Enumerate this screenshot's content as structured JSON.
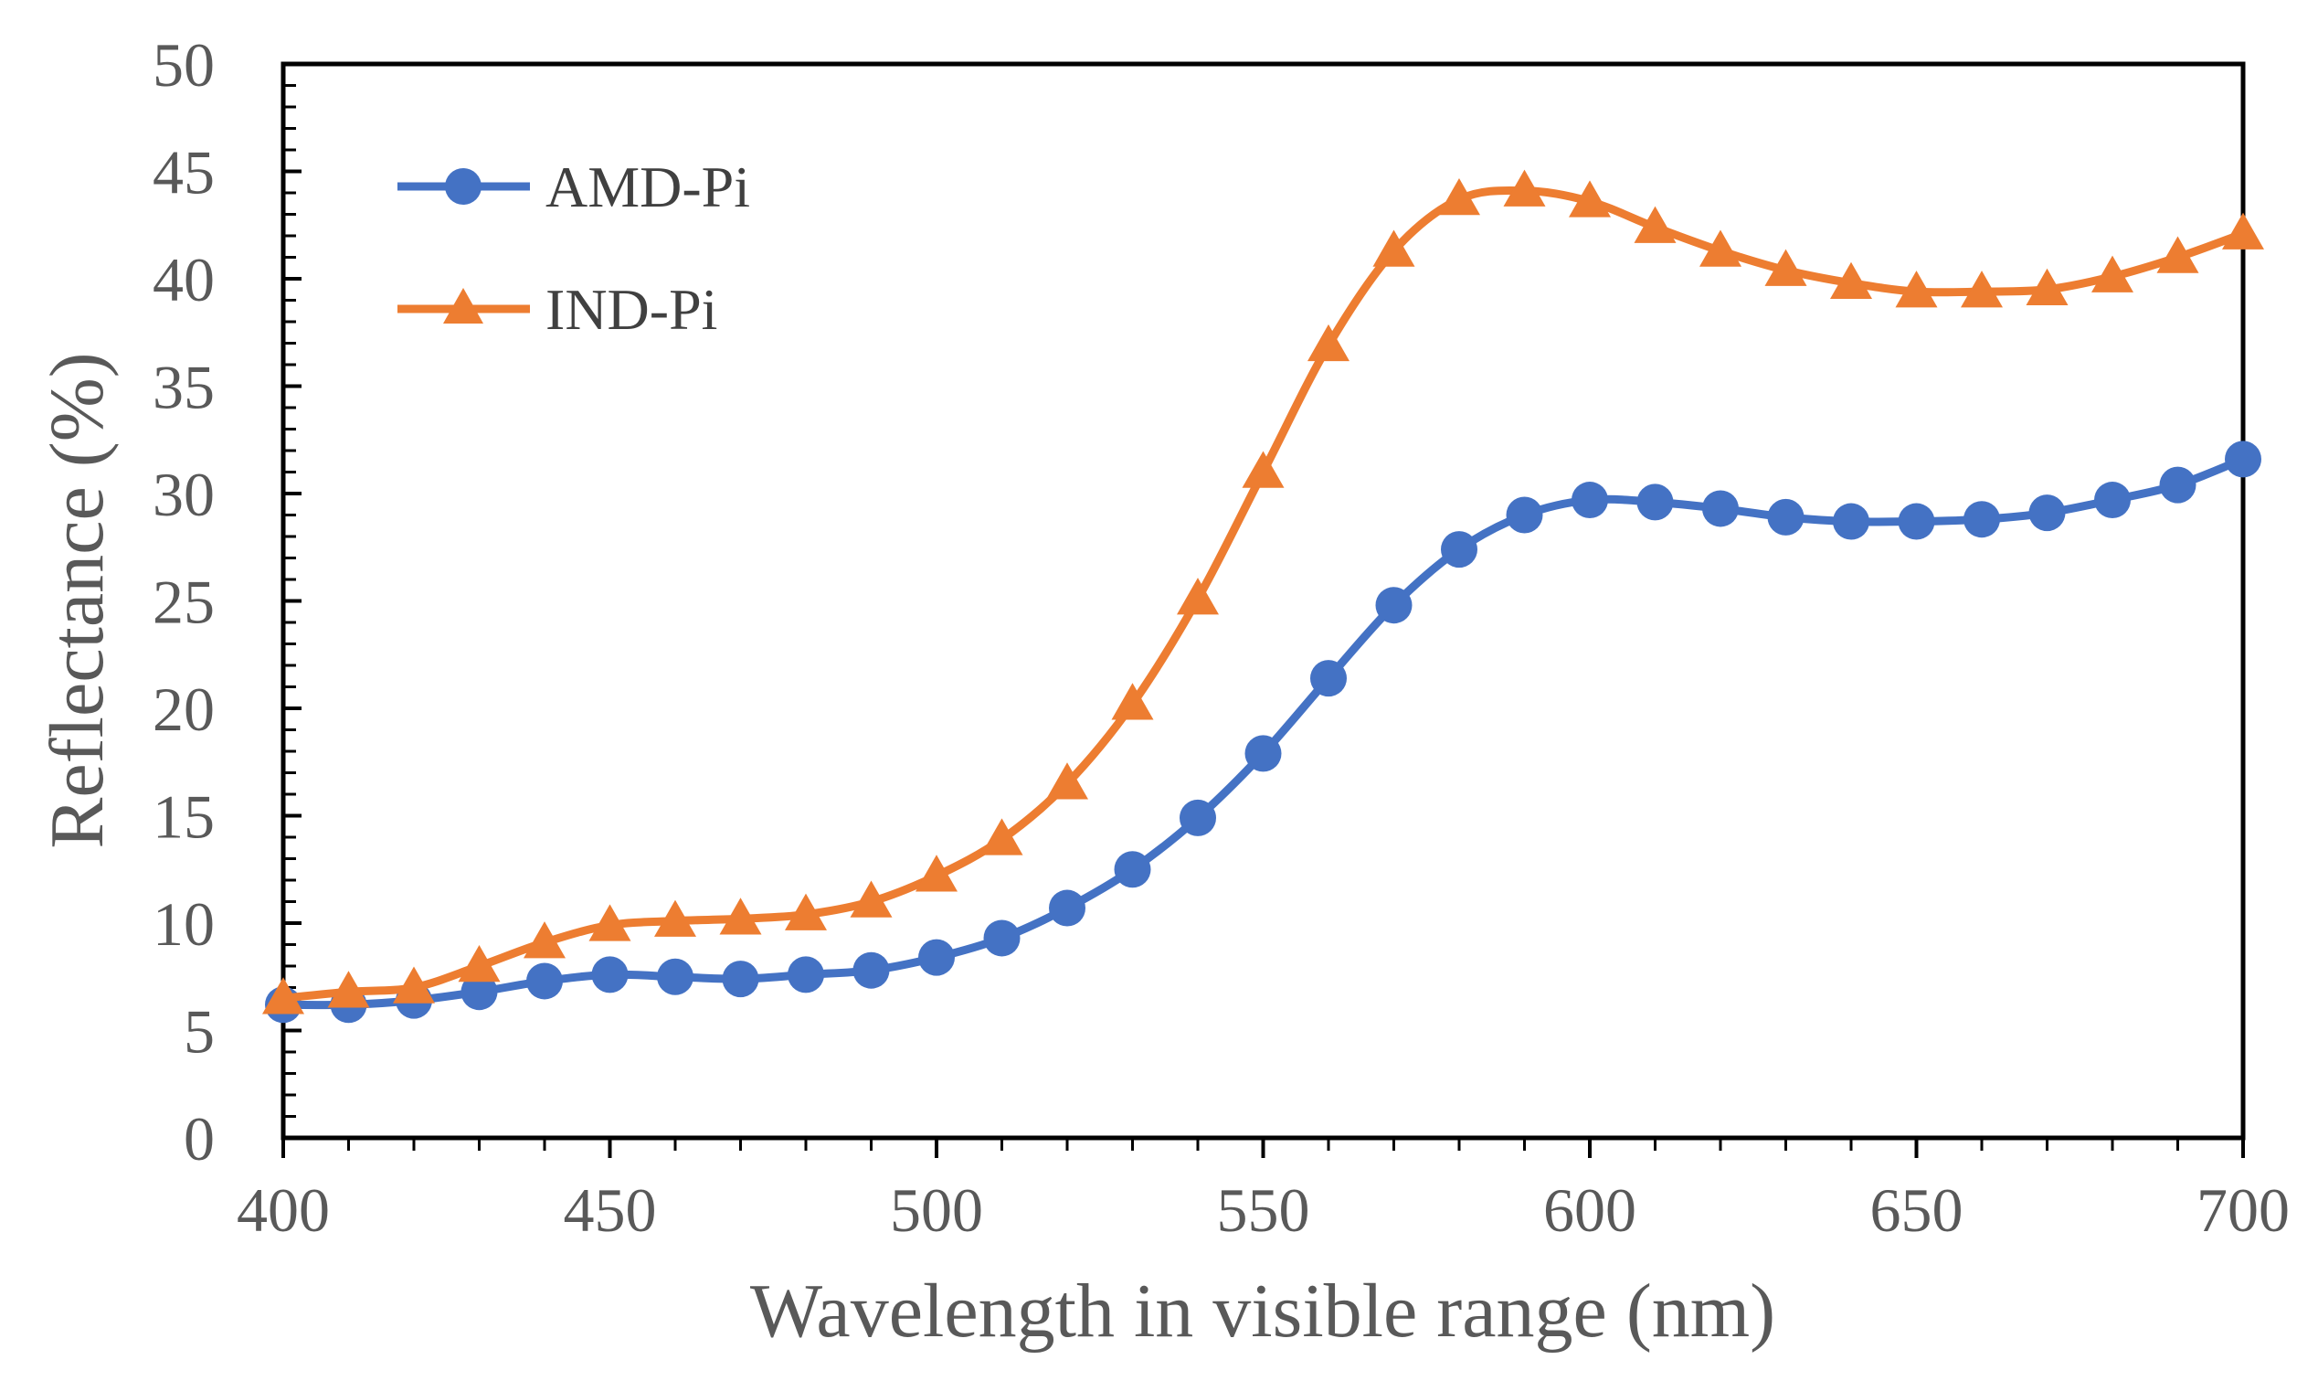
{
  "chart_data": {
    "type": "line",
    "title": "",
    "xlabel": "Wavelength in visible range (nm)",
    "ylabel": "Reflectance (%)",
    "xlim": [
      400,
      700
    ],
    "ylim": [
      0,
      50
    ],
    "xticks": [
      400,
      450,
      500,
      550,
      600,
      650,
      700
    ],
    "yticks": [
      0,
      5,
      10,
      15,
      20,
      25,
      30,
      35,
      40,
      45,
      50
    ],
    "x_tick_labels": [
      "400",
      "450",
      "500",
      "550",
      "600",
      "650",
      "700"
    ],
    "y_tick_labels": [
      "0",
      "5",
      "10",
      "15",
      "20",
      "25",
      "30",
      "35",
      "40",
      "45",
      "50"
    ],
    "grid": false,
    "legend_position": "top-left",
    "x": [
      400,
      410,
      420,
      430,
      440,
      450,
      460,
      470,
      480,
      490,
      500,
      510,
      520,
      530,
      540,
      550,
      560,
      570,
      580,
      590,
      600,
      610,
      620,
      630,
      640,
      650,
      660,
      670,
      680,
      690,
      700
    ],
    "series": [
      {
        "name": "AMD-Pi",
        "color": "#4472C4",
        "marker": "circle",
        "values": [
          6.2,
          6.2,
          6.4,
          6.8,
          7.3,
          7.6,
          7.5,
          7.4,
          7.6,
          7.8,
          8.4,
          9.3,
          10.7,
          12.5,
          14.9,
          17.9,
          21.4,
          24.8,
          27.4,
          29.0,
          29.7,
          29.6,
          29.3,
          28.9,
          28.7,
          28.7,
          28.8,
          29.1,
          29.7,
          30.4,
          31.6
        ]
      },
      {
        "name": "IND-Pi",
        "color": "#ED7D31",
        "marker": "triangle",
        "values": [
          6.5,
          6.8,
          7.0,
          8.0,
          9.1,
          9.9,
          10.1,
          10.2,
          10.4,
          11.0,
          12.2,
          13.9,
          16.5,
          20.2,
          25.1,
          31.0,
          36.9,
          41.3,
          43.7,
          44.1,
          43.6,
          42.4,
          41.3,
          40.4,
          39.8,
          39.4,
          39.4,
          39.5,
          40.1,
          41.0,
          42.1
        ]
      }
    ]
  }
}
